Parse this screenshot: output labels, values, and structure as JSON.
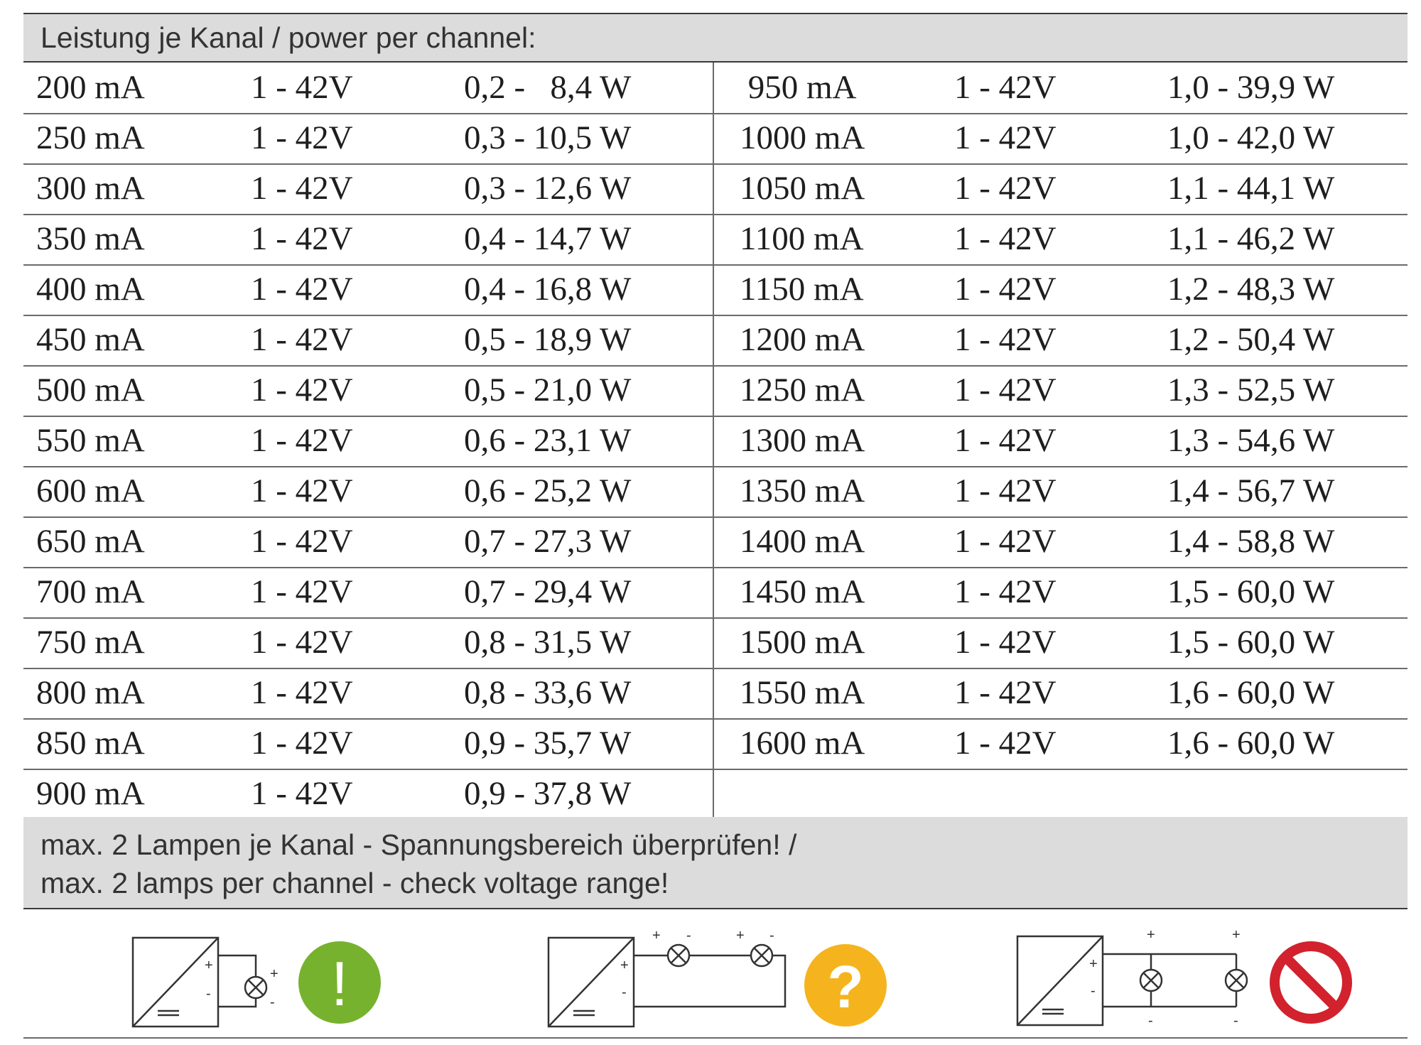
{
  "header": {
    "title": "Leistung je Kanal / power per channel:"
  },
  "table": {
    "left_rows": [
      [
        "200 mA",
        "1 - 42V",
        "0,2 -   8,4 W"
      ],
      [
        "250 mA",
        "1 - 42V",
        "0,3 - 10,5 W"
      ],
      [
        "300 mA",
        "1 - 42V",
        "0,3 - 12,6 W"
      ],
      [
        "350 mA",
        "1 - 42V",
        "0,4 - 14,7 W"
      ],
      [
        "400 mA",
        "1 - 42V",
        "0,4 - 16,8 W"
      ],
      [
        "450 mA",
        "1 - 42V",
        "0,5 - 18,9 W"
      ],
      [
        "500 mA",
        "1 - 42V",
        "0,5 - 21,0 W"
      ],
      [
        "550 mA",
        "1 - 42V",
        "0,6 - 23,1 W"
      ],
      [
        "600 mA",
        "1 - 42V",
        "0,6 - 25,2 W"
      ],
      [
        "650 mA",
        "1 - 42V",
        "0,7 - 27,3 W"
      ],
      [
        "700 mA",
        "1 - 42V",
        "0,7 - 29,4 W"
      ],
      [
        "750 mA",
        "1 - 42V",
        "0,8 - 31,5 W"
      ],
      [
        "800 mA",
        "1 - 42V",
        "0,8 - 33,6 W"
      ],
      [
        "850 mA",
        "1 - 42V",
        "0,9 - 35,7 W"
      ],
      [
        "900 mA",
        "1 - 42V",
        "0,9 - 37,8 W"
      ]
    ],
    "right_rows": [
      [
        " 950 mA",
        "1 - 42V",
        "1,0 - 39,9 W"
      ],
      [
        "1000 mA",
        "1 - 42V",
        "1,0 - 42,0 W"
      ],
      [
        "1050 mA",
        "1 - 42V",
        "1,1 - 44,1 W"
      ],
      [
        "1100 mA",
        "1 - 42V",
        "1,1 - 46,2 W"
      ],
      [
        "1150 mA",
        "1 - 42V",
        "1,2 - 48,3 W"
      ],
      [
        "1200 mA",
        "1 - 42V",
        "1,2 - 50,4 W"
      ],
      [
        "1250 mA",
        "1 - 42V",
        "1,3 - 52,5 W"
      ],
      [
        "1300 mA",
        "1 - 42V",
        "1,3 - 54,6 W"
      ],
      [
        "1350 mA",
        "1 - 42V",
        "1,4 - 56,7 W"
      ],
      [
        "1400 mA",
        "1 - 42V",
        "1,4 - 58,8 W"
      ],
      [
        "1450 mA",
        "1 - 42V",
        "1,5 - 60,0 W"
      ],
      [
        "1500 mA",
        "1 - 42V",
        "1,5 - 60,0 W"
      ],
      [
        "1550 mA",
        "1 - 42V",
        "1,6 - 60,0 W"
      ],
      [
        "1600 mA",
        "1 - 42V",
        "1,6 - 60,0 W"
      ]
    ]
  },
  "note": {
    "line1": "max. 2 Lampen je Kanal - Spannungsbereich überprüfen! /",
    "line2": "max. 2 lamps per channel - check voltage range!"
  },
  "diagrams": [
    {
      "icon": "exclamation-icon",
      "glyph": "!",
      "color": "#77b22e"
    },
    {
      "icon": "question-icon",
      "glyph": "?",
      "color": "#f5b41e"
    },
    {
      "icon": "prohibited-icon",
      "color": "#d2222d"
    }
  ],
  "labels": {
    "plus": "+",
    "minus": "-",
    "dc": "=="
  }
}
